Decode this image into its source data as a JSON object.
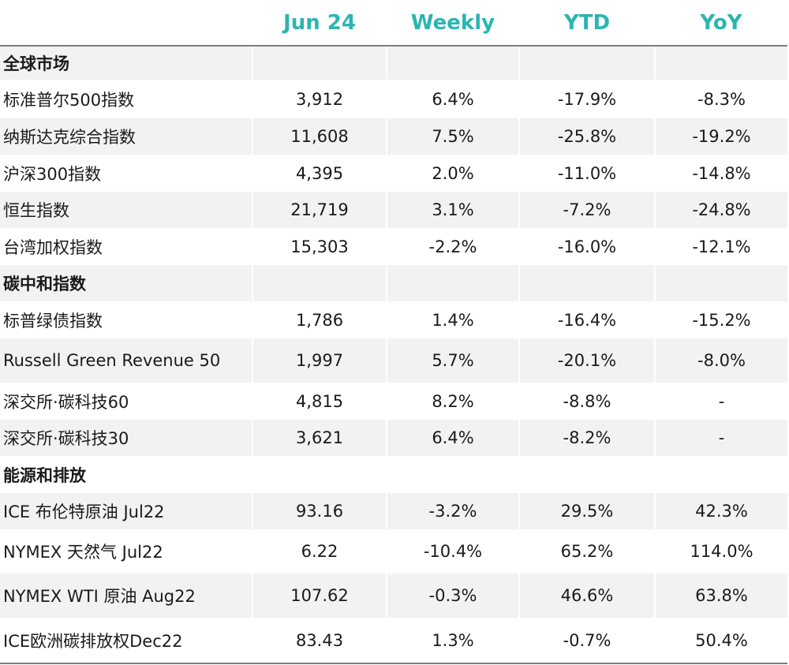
{
  "header": {
    "label": "",
    "date": "Jun 24",
    "weekly": "Weekly",
    "ytd": "YTD",
    "yoy": "YoY"
  },
  "rows": [
    {
      "name": "全球市场",
      "value": "",
      "weekly": "",
      "ytd": "",
      "yoy": "",
      "section": true
    },
    {
      "name": "标准普尔500指数",
      "value": "3,912",
      "weekly": "6.4%",
      "ytd": "-17.9%",
      "yoy": "-8.3%"
    },
    {
      "name": "纳斯达克综合指数",
      "value": "11,608",
      "weekly": "7.5%",
      "ytd": "-25.8%",
      "yoy": "-19.2%"
    },
    {
      "name": "沪深300指数",
      "value": "4,395",
      "weekly": "2.0%",
      "ytd": "-11.0%",
      "yoy": "-14.8%"
    },
    {
      "name": "恒生指数",
      "value": "21,719",
      "weekly": "3.1%",
      "ytd": "-7.2%",
      "yoy": "-24.8%"
    },
    {
      "name": "台湾加权指数",
      "value": "15,303",
      "weekly": "-2.2%",
      "ytd": "-16.0%",
      "yoy": "-12.1%"
    },
    {
      "name": "碳中和指数",
      "value": "",
      "weekly": "",
      "ytd": "",
      "yoy": "",
      "section": true
    },
    {
      "name": "标普绿债指数",
      "value": "1,786",
      "weekly": "1.4%",
      "ytd": "-16.4%",
      "yoy": "-15.2%"
    },
    {
      "name": "Russell Green Revenue 50",
      "value": "1,997",
      "weekly": "5.7%",
      "ytd": "-20.1%",
      "yoy": "-8.0%"
    },
    {
      "name": "深交所·碳科技60",
      "value": "4,815",
      "weekly": "8.2%",
      "ytd": "-8.8%",
      "yoy": "-"
    },
    {
      "name": "深交所·碳科技30",
      "value": "3,621",
      "weekly": "6.4%",
      "ytd": "-8.2%",
      "yoy": "-"
    },
    {
      "name": "能源和排放",
      "value": "",
      "weekly": "",
      "ytd": "",
      "yoy": "",
      "section": true
    },
    {
      "name": "ICE 布伦特原油 Jul22",
      "value": "93.16",
      "weekly": "-3.2%",
      "ytd": "29.5%",
      "yoy": "42.3%"
    },
    {
      "name": "NYMEX 天然气 Jul22",
      "value": "6.22",
      "weekly": "-10.4%",
      "ytd": "65.2%",
      "yoy": "114.0%"
    },
    {
      "name": "NYMEX WTI 原油 Aug22",
      "value": "107.62",
      "weekly": "-0.3%",
      "ytd": "46.6%",
      "yoy": "63.8%"
    },
    {
      "name": "ICE欧洲碳排放权Dec22",
      "value": "83.43",
      "weekly": "1.3%",
      "ytd": "-0.7%",
      "yoy": "50.4%"
    }
  ],
  "colors": {
    "header_text": "#2bb5b0",
    "shade": "#f2f2f2",
    "rule": "#7d7d7d"
  }
}
